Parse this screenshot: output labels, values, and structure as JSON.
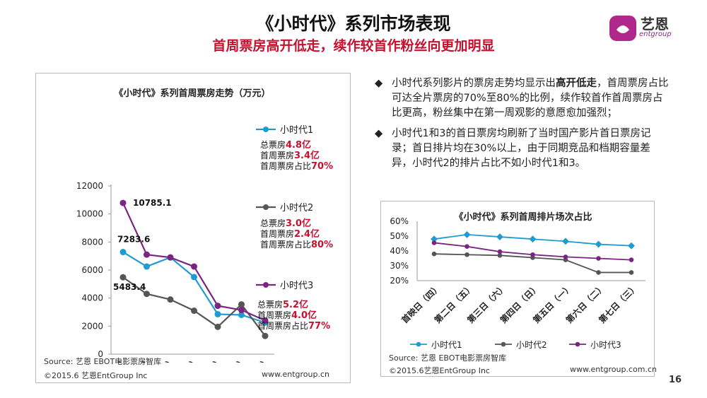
{
  "header": {
    "title": "《小时代》系列市场表现",
    "subtitle": "首周票房高开低走，续作较首作粉丝向更加明显"
  },
  "logo": {
    "name": "艺恩",
    "sub": "entgroup"
  },
  "colors": {
    "s1": "#1f9bd0",
    "s2": "#555555",
    "s3": "#7b2582",
    "red": "#c8102e"
  },
  "left_chart_legend": [
    {
      "name": "小时代1",
      "lines": [
        {
          "label": "总票房",
          "value": "4.8亿"
        },
        {
          "label": "首周票房",
          "value": "3.4亿"
        },
        {
          "label": "首周票房占比",
          "value": "70%"
        }
      ]
    },
    {
      "name": "小时代2",
      "lines": [
        {
          "label": "总票房",
          "value": "3.0亿"
        },
        {
          "label": "首周票房",
          "value": "2.4亿"
        },
        {
          "label": "首周票房占比",
          "value": "80%"
        }
      ]
    },
    {
      "name": "小时代3",
      "lines": [
        {
          "label": "总票房",
          "value": "5.2亿"
        },
        {
          "label": "首周票房",
          "value": "4.0亿"
        },
        {
          "label": "首周票房占比",
          "value": "77%"
        }
      ]
    }
  ],
  "left_source": "Source: 艺恩 EBOT电影票房智库",
  "left_copyright": "©2015.6 艺恩EntGroup Inc",
  "left_url": "www.entgroup.cn",
  "bullets": [
    {
      "pre": "小时代系列影片的票房走势均显示出",
      "bold": "高开低走",
      "post": "，首周票房占比可达全片票房的70%至80%的比例，续作较首作首周票房占比更高，粉丝集中在第一周观影的意愿愈加强烈；"
    },
    {
      "pre": "小时代1和3的首日票房均刷新了当时国产影片首日票房记录；首日排片均在30%以上，由于同期竞品和档期容量差异，小时代2的排片占比不如小时代1和3。",
      "bold": "",
      "post": ""
    }
  ],
  "bullet_mark": "◆",
  "right_source": "Source: 艺恩 EBOT电影票房智库",
  "right_copyright": "©2015.6艺恩EntGroup Inc",
  "right_url": "www.entgroup.com.cn",
  "page_number": "16",
  "chart_data": [
    {
      "type": "line",
      "title": "《小时代》系列首周票房走势（万元）",
      "categories": [
        "首映日（四）",
        "第二日（五）",
        "第三日（六）",
        "第四日（日）",
        "第五日（一）",
        "第六日（二）",
        "第七日（三）"
      ],
      "ylim": [
        0,
        12000
      ],
      "yticks": [
        0,
        2000,
        4000,
        6000,
        8000,
        10000,
        12000
      ],
      "series": [
        {
          "name": "小时代1",
          "values": [
            7283.6,
            6250,
            6900,
            5500,
            2850,
            2800,
            2250
          ]
        },
        {
          "name": "小时代2",
          "values": [
            5483.4,
            4300,
            3900,
            3100,
            1950,
            3550,
            1300
          ]
        },
        {
          "name": "小时代3",
          "values": [
            10785.1,
            7100,
            6900,
            6250,
            3450,
            3150,
            2400
          ]
        }
      ],
      "data_labels": [
        {
          "series": 2,
          "index": 0,
          "text": "10785.1"
        },
        {
          "series": 0,
          "index": 0,
          "text": "7283.6"
        },
        {
          "series": 1,
          "index": 0,
          "text": "5483.4"
        }
      ]
    },
    {
      "type": "line",
      "title": "《小时代》系列首周排片场次占比",
      "categories": [
        "首映日（四）",
        "第二日（五）",
        "第三日（六）",
        "第四日（日）",
        "第五日（一）",
        "第六日（二）",
        "第七日（三）"
      ],
      "ylim": [
        20,
        60
      ],
      "yticks": [
        "20%",
        "30%",
        "40%",
        "50%",
        "60%"
      ],
      "ytick_values": [
        20,
        30,
        40,
        50,
        60
      ],
      "series": [
        {
          "name": "小时代1",
          "values": [
            48,
            51,
            49.5,
            48,
            46.5,
            44.5,
            43.5
          ]
        },
        {
          "name": "小时代2",
          "values": [
            38,
            37.5,
            37,
            35.5,
            34,
            25.5,
            25.5
          ]
        },
        {
          "name": "小时代3",
          "values": [
            45.5,
            43,
            39.5,
            37.5,
            36,
            35,
            34
          ]
        }
      ]
    }
  ]
}
